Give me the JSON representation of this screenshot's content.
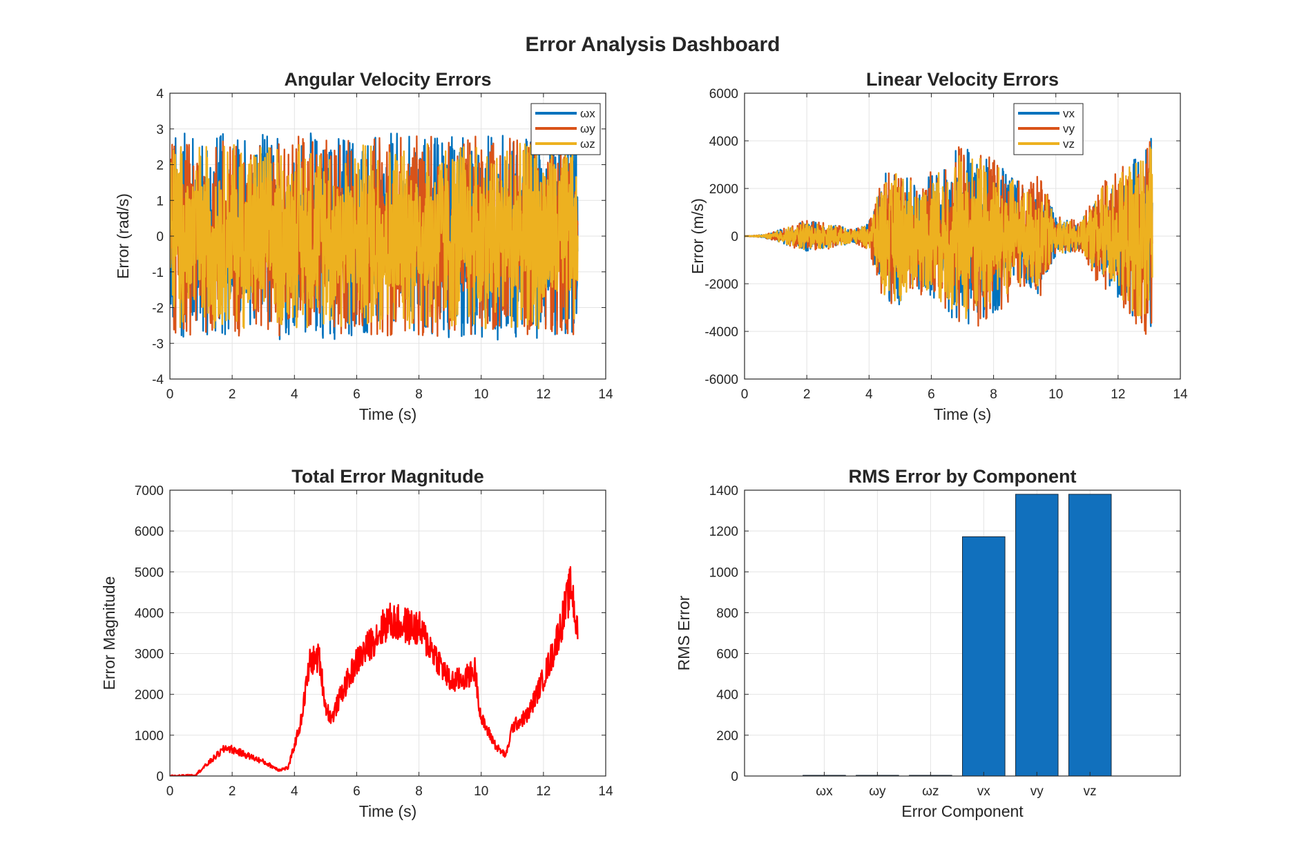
{
  "figure": {
    "title": "Error Analysis Dashboard"
  },
  "colors": {
    "blue": "#0072BD",
    "orange": "#D95319",
    "yellow": "#EDB120",
    "red": "#FF0000",
    "bar": "#1170BD"
  },
  "chart_data": [
    {
      "id": "angular",
      "type": "line",
      "title": "Angular Velocity Errors",
      "xlabel": "Time (s)",
      "ylabel": "Error (rad/s)",
      "xlim": [
        0,
        14
      ],
      "ylim": [
        -4,
        4
      ],
      "xticks": [
        0,
        2,
        4,
        6,
        8,
        10,
        12,
        14
      ],
      "yticks": [
        -4,
        -3,
        -2,
        -1,
        0,
        1,
        2,
        3,
        4
      ],
      "grid": true,
      "legend": "top-right",
      "x_end": 13.1,
      "series": [
        {
          "name": "ωx",
          "color": "#0072BD",
          "amplitude": 2.9
        },
        {
          "name": "ωy",
          "color": "#D95319",
          "amplitude": 2.8
        },
        {
          "name": "ωz",
          "color": "#EDB120",
          "amplitude": 2.6
        }
      ]
    },
    {
      "id": "linear",
      "type": "line",
      "title": "Linear Velocity Errors",
      "xlabel": "Time (s)",
      "ylabel": "Error (m/s)",
      "xlim": [
        0,
        14
      ],
      "ylim": [
        -6000,
        6000
      ],
      "xticks": [
        0,
        2,
        4,
        6,
        8,
        10,
        12,
        14
      ],
      "yticks": [
        -6000,
        -4000,
        -2000,
        0,
        2000,
        4000,
        6000
      ],
      "grid": true,
      "legend": "top-right",
      "x_end": 13.1,
      "envelope": {
        "t": [
          0,
          0.6,
          1.2,
          2.0,
          3.0,
          3.5,
          4.0,
          4.5,
          5.0,
          5.5,
          6.0,
          7.0,
          8.0,
          9.0,
          9.5,
          10.0,
          10.8,
          11.5,
          12.0,
          12.5,
          13.1
        ],
        "v": [
          0,
          50,
          300,
          650,
          450,
          250,
          600,
          2800,
          2900,
          2200,
          2600,
          3900,
          3300,
          2000,
          2500,
          800,
          600,
          2300,
          2600,
          3400,
          4200
        ]
      },
      "series": [
        {
          "name": "vx",
          "color": "#0072BD",
          "amplitude": 1.0
        },
        {
          "name": "vy",
          "color": "#D95319",
          "amplitude": 1.05
        },
        {
          "name": "vz",
          "color": "#EDB120",
          "amplitude": 0.95
        }
      ]
    },
    {
      "id": "total",
      "type": "line",
      "title": "Total Error Magnitude",
      "xlabel": "Time (s)",
      "ylabel": "Error Magnitude",
      "xlim": [
        0,
        14
      ],
      "ylim": [
        0,
        7000
      ],
      "xticks": [
        0,
        2,
        4,
        6,
        8,
        10,
        12,
        14
      ],
      "yticks": [
        0,
        1000,
        2000,
        3000,
        4000,
        5000,
        6000,
        7000
      ],
      "grid": true,
      "x_end": 13.1,
      "series": [
        {
          "name": "",
          "color": "#FF0000",
          "t": [
            0,
            0.8,
            1.0,
            1.5,
            1.8,
            2.0,
            2.5,
            3.0,
            3.5,
            3.8,
            4.2,
            4.5,
            4.8,
            5.0,
            5.2,
            5.5,
            6.0,
            6.5,
            7.0,
            7.5,
            8.0,
            8.5,
            9.0,
            9.5,
            9.8,
            10.0,
            10.5,
            10.8,
            11.0,
            11.5,
            12.0,
            12.3,
            12.6,
            12.9,
            13.1
          ],
          "y": [
            0,
            20,
            150,
            500,
            700,
            650,
            500,
            350,
            150,
            200,
            1300,
            2800,
            2900,
            1700,
            1400,
            2000,
            2800,
            3300,
            3800,
            3700,
            3600,
            3000,
            2300,
            2400,
            2600,
            1400,
            700,
            500,
            1200,
            1500,
            2400,
            3000,
            3800,
            4700,
            3400
          ]
        }
      ]
    },
    {
      "id": "rms",
      "type": "bar",
      "title": "RMS Error by Component",
      "xlabel": "Error Component",
      "ylabel": "RMS Error",
      "ylim": [
        0,
        1400
      ],
      "yticks": [
        0,
        200,
        400,
        600,
        800,
        1000,
        1200,
        1400
      ],
      "grid": true,
      "categories": [
        "ωx",
        "ωy",
        "ωz",
        "vx",
        "vy",
        "vz"
      ],
      "values": [
        1.6,
        1.6,
        1.5,
        1172,
        1380,
        1380
      ],
      "color": "#1170BD"
    }
  ]
}
